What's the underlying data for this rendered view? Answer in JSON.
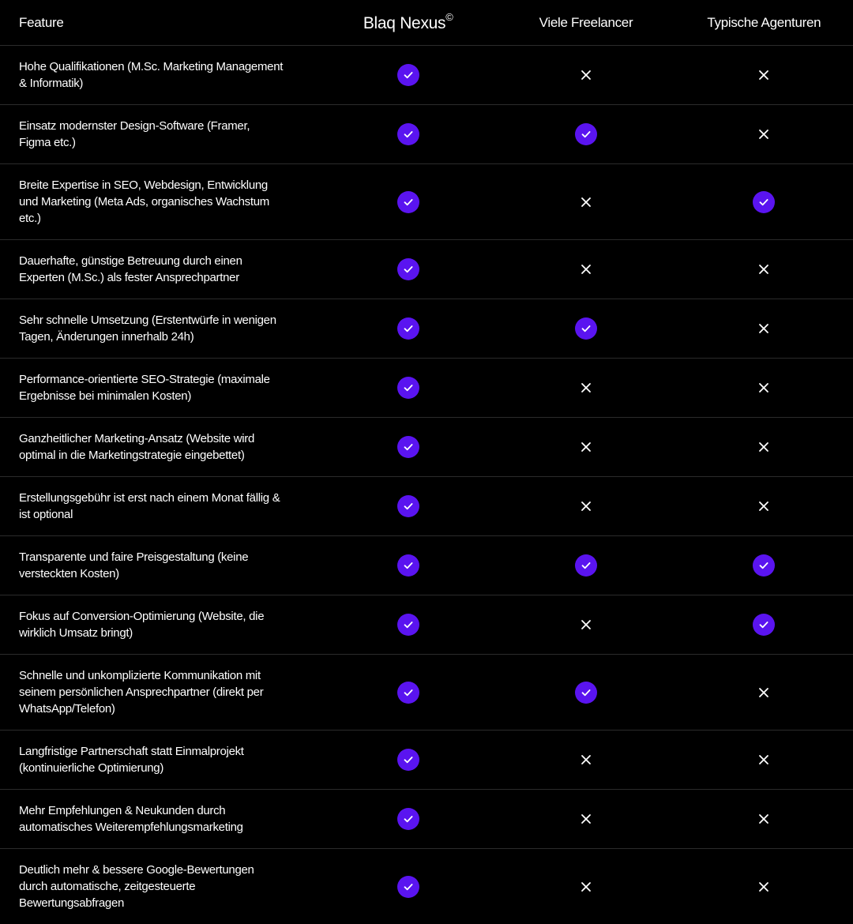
{
  "header": {
    "feature": "Feature",
    "brand": "Blaq Nexus",
    "brand_mark": "©",
    "columns": [
      "Viele Freelancer",
      "Typische Agenturen"
    ]
  },
  "rows": [
    {
      "label": "Hohe Qualifikationen (M.Sc. Marketing Management & Informatik)",
      "values": [
        true,
        false,
        false
      ]
    },
    {
      "label": "Einsatz modernster Design-Software (Framer, Figma etc.)",
      "values": [
        true,
        true,
        false
      ]
    },
    {
      "label": "Breite Expertise in SEO, Webdesign, Entwicklung und Marketing (Meta Ads, organisches Wachstum etc.)",
      "values": [
        true,
        false,
        true
      ]
    },
    {
      "label": "Dauerhafte, günstige Betreuung durch einen Experten (M.Sc.) als fester Ansprechpartner",
      "values": [
        true,
        false,
        false
      ]
    },
    {
      "label": "Sehr schnelle Umsetzung (Erstentwürfe in wenigen Tagen, Änderungen innerhalb 24h)",
      "values": [
        true,
        true,
        false
      ]
    },
    {
      "label": "Performance-orientierte SEO-Strategie (maximale Ergebnisse bei minimalen Kosten)",
      "values": [
        true,
        false,
        false
      ]
    },
    {
      "label": "Ganzheitlicher Marketing-Ansatz (Website wird optimal in die Marketingstrategie eingebettet)",
      "values": [
        true,
        false,
        false
      ]
    },
    {
      "label": "Erstellungsgebühr ist erst nach einem Monat fällig & ist optional",
      "values": [
        true,
        false,
        false
      ]
    },
    {
      "label": "Transparente und faire Preisgestaltung (keine versteckten Kosten)",
      "values": [
        true,
        true,
        true
      ]
    },
    {
      "label": "Fokus auf Conversion-Optimierung (Website, die wirklich Umsatz bringt)",
      "values": [
        true,
        false,
        true
      ]
    },
    {
      "label": "Schnelle und unkomplizierte Kommunikation mit seinem persönlichen Ansprechpartner (direkt per WhatsApp/Telefon)",
      "values": [
        true,
        true,
        false
      ]
    },
    {
      "label": "Langfristige Partnerschaft statt Einmalprojekt (kontinuierliche Optimierung)",
      "values": [
        true,
        false,
        false
      ]
    },
    {
      "label": "Mehr Empfehlungen & Neukunden durch automatisches Weiterempfehlungsmarketing",
      "values": [
        true,
        false,
        false
      ]
    },
    {
      "label": "Deutlich mehr & bessere Google-Bewertungen durch automatische, zeitgesteuerte Bewertungsabfragen",
      "values": [
        true,
        false,
        false
      ]
    }
  ]
}
